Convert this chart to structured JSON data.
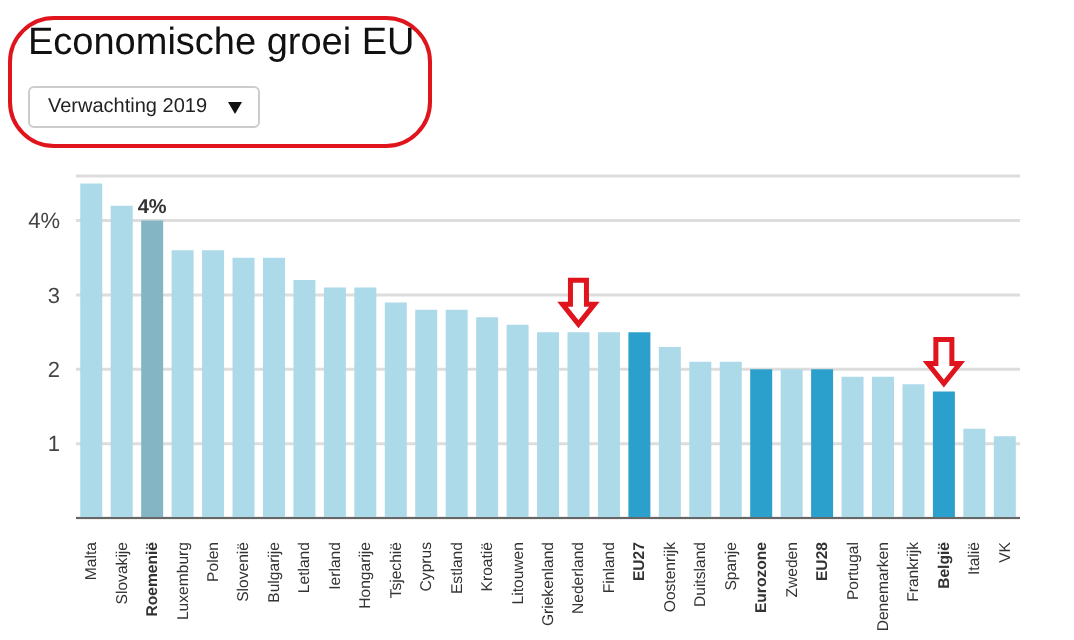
{
  "chart_data": {
    "type": "bar",
    "title": "Economische groei EU",
    "subtitle": "Verwachting 2019",
    "categories": [
      "Malta",
      "Slovakije",
      "Roemenië",
      "Luxemburg",
      "Polen",
      "Slovenië",
      "Bulgarije",
      "Letland",
      "Ierland",
      "Hongarije",
      "Tsjechië",
      "Cyprus",
      "Estland",
      "Kroatië",
      "Litouwen",
      "Griekenland",
      "Nederland",
      "Finland",
      "EU27",
      "Oostenrijk",
      "Duitsland",
      "Spanje",
      "Eurozone",
      "Zweden",
      "EU28",
      "Portugal",
      "Denemarken",
      "Frankrijk",
      "België",
      "Italië",
      "VK"
    ],
    "values": [
      4.5,
      4.2,
      4.0,
      3.6,
      3.6,
      3.5,
      3.5,
      3.2,
      3.1,
      3.1,
      2.9,
      2.8,
      2.8,
      2.7,
      2.6,
      2.5,
      2.5,
      2.5,
      2.5,
      2.3,
      2.1,
      2.1,
      2.0,
      2.0,
      2.0,
      1.9,
      1.9,
      1.8,
      1.7,
      1.2,
      1.1
    ],
    "colors": [
      "#acdae9",
      "#acdae9",
      "#84b5c5",
      "#acdae9",
      "#acdae9",
      "#acdae9",
      "#acdae9",
      "#acdae9",
      "#acdae9",
      "#acdae9",
      "#acdae9",
      "#acdae9",
      "#acdae9",
      "#acdae9",
      "#acdae9",
      "#acdae9",
      "#acdae9",
      "#acdae9",
      "#2ca0cc",
      "#acdae9",
      "#acdae9",
      "#acdae9",
      "#2ca0cc",
      "#acdae9",
      "#2ca0cc",
      "#acdae9",
      "#acdae9",
      "#acdae9",
      "#2ca0cc",
      "#acdae9",
      "#acdae9"
    ],
    "value_labels": [
      null,
      null,
      "4%",
      null,
      null,
      null,
      null,
      null,
      null,
      null,
      null,
      null,
      null,
      null,
      null,
      null,
      null,
      null,
      null,
      null,
      null,
      null,
      null,
      null,
      null,
      null,
      null,
      null,
      null,
      null,
      null
    ],
    "ylim": [
      0,
      4.6
    ],
    "yticks": [
      {
        "value": 0,
        "label": null
      },
      1,
      2,
      3,
      {
        "value": 4,
        "label": "4%"
      }
    ],
    "grid": "y",
    "legend": false
  }
}
